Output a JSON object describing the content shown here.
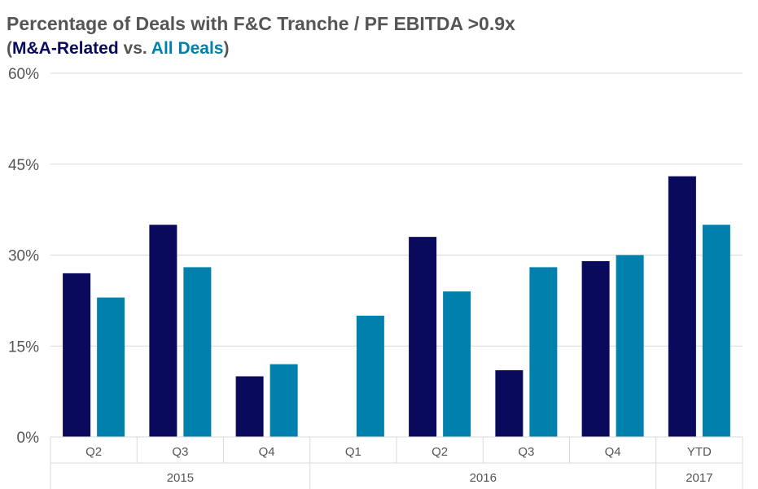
{
  "chart_data": {
    "type": "bar",
    "title": "Percentage of Deals with F&C Tranche / PF EBITDA >0.9x",
    "subtitle": {
      "open": "(",
      "series_a": "M&A-Related",
      "middle": " vs. ",
      "series_b": "All Deals",
      "close": ")"
    },
    "categories": [
      "Q2",
      "Q3",
      "Q4",
      "Q1",
      "Q2",
      "Q3",
      "Q4",
      "YTD"
    ],
    "groups": [
      {
        "label": "2015",
        "count": 3
      },
      {
        "label": "2016",
        "count": 4
      },
      {
        "label": "2017",
        "count": 1
      }
    ],
    "series": [
      {
        "name": "M&A-Related",
        "color": "#0a0a5c",
        "values": [
          27,
          35,
          10,
          null,
          33,
          11,
          29,
          43
        ]
      },
      {
        "name": "All Deals",
        "color": "#0081ad",
        "values": [
          23,
          28,
          12,
          20,
          24,
          28,
          30,
          35
        ]
      }
    ],
    "ylim": [
      0,
      60
    ],
    "yticks": [
      0,
      15,
      30,
      45,
      60
    ],
    "ytick_labels": [
      "0%",
      "15%",
      "30%",
      "45%",
      "60%"
    ],
    "grid": true,
    "legend": "none"
  }
}
